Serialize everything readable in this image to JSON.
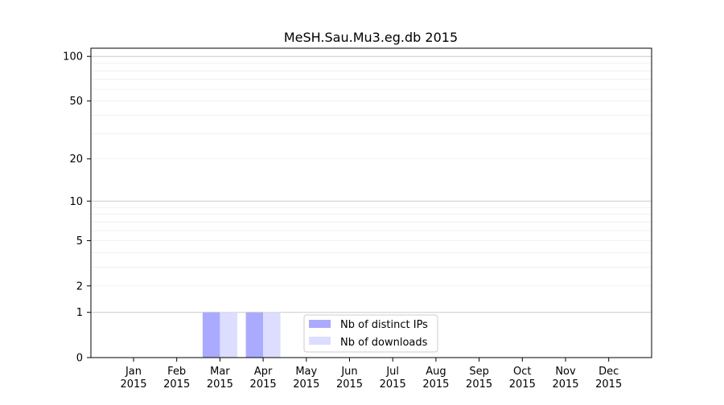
{
  "chart_data": {
    "type": "bar",
    "title": "MeSH.Sau.Mu3.eg.db 2015",
    "categories": [
      "Jan\n2015",
      "Feb\n2015",
      "Mar\n2015",
      "Apr\n2015",
      "May\n2015",
      "Jun\n2015",
      "Jul\n2015",
      "Aug\n2015",
      "Sep\n2015",
      "Oct\n2015",
      "Nov\n2015",
      "Dec\n2015"
    ],
    "series": [
      {
        "name": "Nb of distinct IPs",
        "color": "#aaaaff",
        "values": [
          0,
          0,
          1,
          1,
          0,
          0,
          0,
          0,
          0,
          0,
          0,
          0
        ]
      },
      {
        "name": "Nb of downloads",
        "color": "#ddddff",
        "values": [
          0,
          0,
          1,
          1,
          0,
          0,
          0,
          0,
          0,
          0,
          0,
          0
        ]
      }
    ],
    "y_scale": "log(1+y)",
    "ylim": [
      0,
      120
    ],
    "y_ticks": [
      0,
      1,
      2,
      5,
      10,
      20,
      50,
      100
    ],
    "grid": true,
    "legend_position": "lower-center"
  }
}
